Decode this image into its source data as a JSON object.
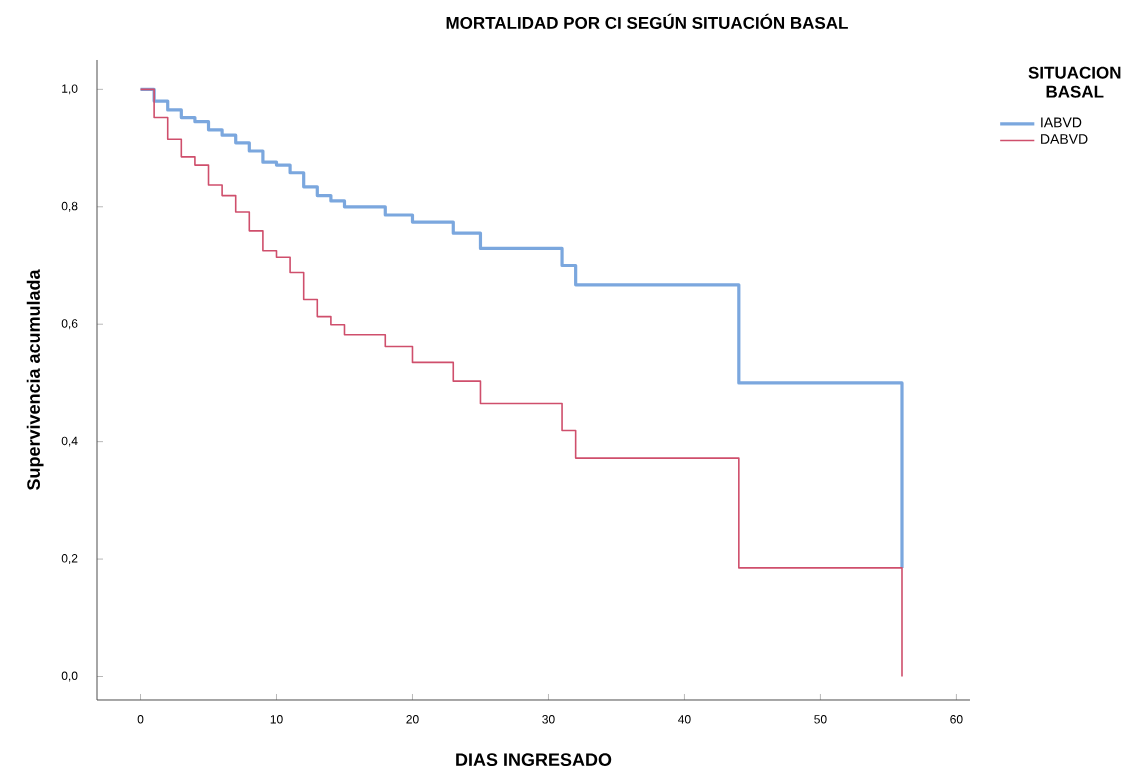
{
  "chart_data": {
    "type": "step",
    "title": "MORTALIDAD POR CI SEGÚN SITUACIÓN BASAL",
    "xlabel": "DIAS INGRESADO",
    "ylabel": "Supervivencia acumulada",
    "legend_title": "SITUACION BASAL",
    "legend": "right",
    "grid": false,
    "xlim": [
      -3.2,
      61
    ],
    "ylim": [
      -0.04,
      1.05
    ],
    "xticks": [
      0,
      10,
      20,
      30,
      40,
      50,
      60
    ],
    "yticks": [
      {
        "value": 0,
        "label": "0,0"
      },
      {
        "value": 0.2,
        "label": "0,2"
      },
      {
        "value": 0.4,
        "label": "0,4"
      },
      {
        "value": 0.6,
        "label": "0,6"
      },
      {
        "value": 0.8,
        "label": "0,8"
      },
      {
        "value": 1,
        "label": "1,0"
      }
    ],
    "series": [
      {
        "name": "IABVD",
        "color": "#7ba7de",
        "x": [
          0,
          1,
          2,
          3,
          4,
          5,
          6,
          7,
          8,
          9,
          10,
          11,
          12,
          13,
          14,
          15,
          18,
          20,
          23,
          25,
          31,
          32,
          44,
          56
        ],
        "values": [
          1.0,
          0.98,
          0.965,
          0.952,
          0.945,
          0.931,
          0.922,
          0.909,
          0.895,
          0.876,
          0.871,
          0.858,
          0.834,
          0.819,
          0.81,
          0.8,
          0.786,
          0.774,
          0.755,
          0.729,
          0.7,
          0.667,
          0.5,
          0.185
        ]
      },
      {
        "name": "DABVD",
        "color": "#cf4f6c",
        "x": [
          0,
          1,
          2,
          3,
          4,
          5,
          6,
          7,
          8,
          9,
          10,
          11,
          12,
          13,
          14,
          15,
          18,
          20,
          23,
          25,
          31,
          32,
          44,
          56
        ],
        "values": [
          1.0,
          0.952,
          0.915,
          0.885,
          0.871,
          0.837,
          0.819,
          0.791,
          0.759,
          0.725,
          0.714,
          0.688,
          0.642,
          0.613,
          0.599,
          0.582,
          0.562,
          0.535,
          0.503,
          0.465,
          0.419,
          0.372,
          0.185,
          0.0
        ]
      }
    ]
  }
}
